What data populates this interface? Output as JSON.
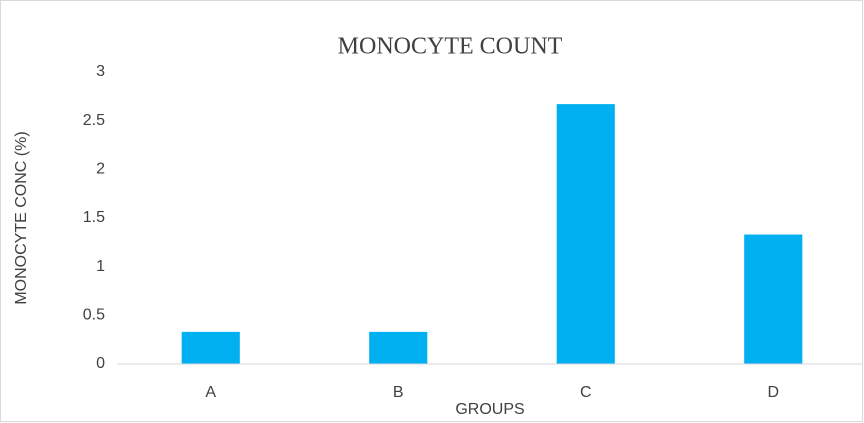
{
  "chart_data": {
    "type": "bar",
    "title": "MONOCYTE COUNT",
    "xlabel": "GROUPS",
    "ylabel": "MONOCYTE CONC (%)",
    "categories": [
      "A",
      "B",
      "C",
      "D"
    ],
    "values": [
      0.33,
      0.33,
      2.67,
      1.33
    ],
    "color": "#00b0f0",
    "ylim": [
      0,
      3
    ],
    "yticks": [
      0,
      0.5,
      1,
      1.5,
      2,
      2.5,
      3
    ],
    "grid": false
  }
}
